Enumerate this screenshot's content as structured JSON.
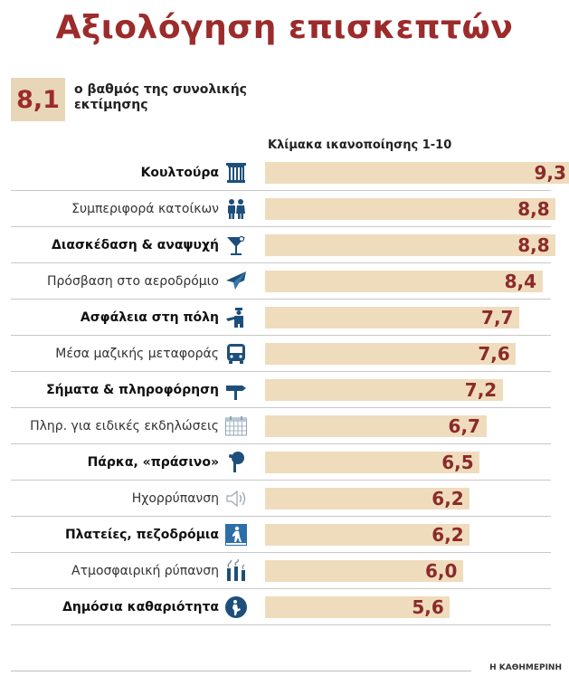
{
  "title": "Αξιολόγηση επισκεπτών",
  "overall": {
    "score": "8,1",
    "caption": "ο βαθμός της συνολικής εκτίμησης"
  },
  "source": "Η ΚΑΘΗΜΕΡΙΝΗ",
  "colors": {
    "title": "#9c2b2b",
    "bar": "#efdcbd",
    "value": "#8b2a2a",
    "icon": "#1e4f7a"
  },
  "chart_data": {
    "type": "bar",
    "orientation": "horizontal",
    "title": "Κλίμακα ικανοποίησης 1-10",
    "categories": [
      "Κουλτούρα",
      "Συμπεριφορά κατοίκων",
      "Διασκέδαση & αναψυχή",
      "Πρόσβαση στο αεροδρόμιο",
      "Ασφάλεια στη πόλη",
      "Μέσα μαζικής μεταφοράς",
      "Σήματα & πληροφόρηση",
      "Πληρ. για ειδικές εκδηλώσεις",
      "Πάρκα, «πράσινο»",
      "Ηχορρύπανση",
      "Πλατείες, πεζοδρόμια",
      "Ατμοσφαιρική ρύπανση",
      "Δημόσια καθαριότητα"
    ],
    "values": [
      9.3,
      8.8,
      8.8,
      8.4,
      7.7,
      7.6,
      7.2,
      6.7,
      6.5,
      6.2,
      6.2,
      6.0,
      5.6
    ],
    "value_labels": [
      "9,3",
      "8,8",
      "8,8",
      "8,4",
      "7,7",
      "7,6",
      "7,2",
      "6,7",
      "6,5",
      "6,2",
      "6,2",
      "6,0",
      "5,6"
    ],
    "bold": [
      true,
      false,
      true,
      false,
      true,
      false,
      true,
      false,
      true,
      false,
      true,
      false,
      true
    ],
    "icons": [
      "column-icon",
      "people-icon",
      "cocktail-icon",
      "airplane-icon",
      "police-icon",
      "bus-icon",
      "signpost-icon",
      "calendar-icon",
      "tree-icon",
      "speaker-icon",
      "pedestrian-icon",
      "smokestack-icon",
      "recycle-icon"
    ],
    "xlim": [
      0,
      10
    ]
  }
}
